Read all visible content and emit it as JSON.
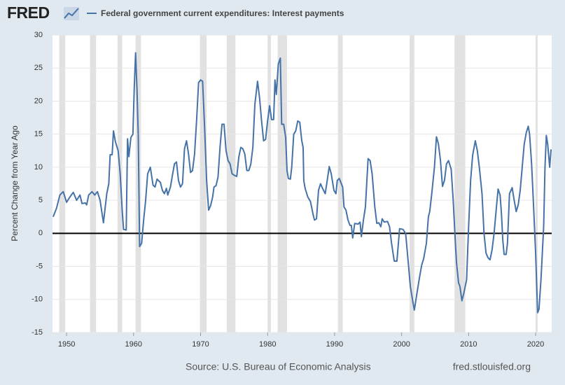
{
  "logo": "FRED",
  "source": "Source: U.S. Bureau of Economic Analysis",
  "site": "fred.stlouisfed.org",
  "chart_data": {
    "type": "line",
    "y_label": "Percent Change from Year Ago",
    "x": [
      1948.0,
      1948.5,
      1949.0,
      1949.5,
      1950.0,
      1950.5,
      1951.0,
      1951.5,
      1952.0,
      1952.3,
      1952.8,
      1953.0,
      1953.3,
      1953.8,
      1954.2,
      1954.6,
      1955.0,
      1955.5,
      1956.0,
      1956.3,
      1956.5,
      1956.8,
      1957.0,
      1957.3,
      1957.7,
      1958.0,
      1958.3,
      1958.5,
      1958.9,
      1959.1,
      1959.3,
      1959.6,
      1959.9,
      1960.1,
      1960.3,
      1960.5,
      1960.7,
      1960.9,
      1961.2,
      1961.5,
      1961.8,
      1962.1,
      1962.5,
      1962.9,
      1963.2,
      1963.5,
      1964.0,
      1964.3,
      1964.6,
      1964.9,
      1965.1,
      1965.5,
      1965.8,
      1966.1,
      1966.4,
      1966.7,
      1967.0,
      1967.3,
      1967.6,
      1967.9,
      1968.2,
      1968.5,
      1968.8,
      1969.1,
      1969.4,
      1969.7,
      1970.0,
      1970.3,
      1970.6,
      1970.9,
      1971.2,
      1971.5,
      1971.8,
      1972.0,
      1972.3,
      1972.6,
      1972.9,
      1973.2,
      1973.5,
      1973.8,
      1974.1,
      1974.4,
      1974.7,
      1975.0,
      1975.4,
      1975.7,
      1976.0,
      1976.3,
      1976.6,
      1976.9,
      1977.2,
      1977.5,
      1977.8,
      1978.1,
      1978.5,
      1978.8,
      1979.1,
      1979.4,
      1979.7,
      1980.0,
      1980.3,
      1980.6,
      1980.9,
      1981.1,
      1981.3,
      1981.6,
      1981.9,
      1982.1,
      1982.4,
      1982.7,
      1982.9,
      1983.1,
      1983.4,
      1983.6,
      1983.9,
      1984.2,
      1984.5,
      1984.8,
      1985.1,
      1985.3,
      1985.4,
      1985.6,
      1986.0,
      1986.4,
      1986.8,
      1987.0,
      1987.3,
      1987.6,
      1987.9,
      1988.2,
      1988.6,
      1988.9,
      1989.2,
      1989.5,
      1989.9,
      1990.2,
      1990.4,
      1990.7,
      1991.2,
      1991.4,
      1991.7,
      1992.0,
      1992.3,
      1992.5,
      1992.7,
      1993.0,
      1993.5,
      1993.8,
      1994.0,
      1994.3,
      1994.6,
      1995.0,
      1995.3,
      1995.6,
      1996.0,
      1996.3,
      1996.6,
      1996.9,
      1997.1,
      1997.4,
      1997.9,
      1998.2,
      1998.5,
      1998.9,
      1999.3,
      1999.7,
      2000.2,
      2000.6,
      2001.0,
      2001.3,
      2001.7,
      2001.9,
      2002.3,
      2002.7,
      2003.0,
      2003.3,
      2003.7,
      2004.0,
      2004.2,
      2004.5,
      2004.9,
      2005.2,
      2005.5,
      2005.8,
      2006.1,
      2006.4,
      2006.7,
      2007.0,
      2007.4,
      2007.7,
      2008.0,
      2008.2,
      2008.5,
      2008.7,
      2009.0,
      2009.3,
      2009.7,
      2010.0,
      2010.3,
      2010.6,
      2011.0,
      2011.3,
      2011.6,
      2012.0,
      2012.3,
      2012.6,
      2012.9,
      2013.2,
      2013.5,
      2013.8,
      2014.2,
      2014.4,
      2014.7,
      2014.9,
      2015.1,
      2015.3,
      2015.6,
      2015.8,
      2016.1,
      2016.5,
      2016.8,
      2017.1,
      2017.4,
      2017.7,
      2018.0,
      2018.3,
      2018.6,
      2018.9,
      2019.1,
      2019.4,
      2019.7,
      2020.0,
      2020.3,
      2020.5,
      2020.8,
      2021.2,
      2021.4,
      2021.6,
      2021.8,
      2022.1,
      2022.3
    ],
    "series": [
      {
        "name": "Federal government current expenditures: Interest payments",
        "color": "#4572a7",
        "values": [
          2.5,
          3.8,
          5.8,
          6.3,
          4.7,
          5.5,
          6.2,
          5.0,
          5.8,
          4.5,
          4.6,
          4.3,
          5.8,
          6.3,
          5.8,
          6.3,
          5.0,
          1.6,
          6.0,
          7.5,
          11.9,
          11.9,
          15.5,
          13.8,
          12.5,
          9.0,
          3.5,
          0.6,
          0.5,
          14.3,
          11.6,
          14.5,
          15.0,
          22.0,
          27.3,
          22.0,
          14.8,
          -2.0,
          -1.5,
          2.0,
          5.0,
          9.0,
          10.0,
          7.3,
          7.0,
          8.2,
          7.7,
          6.5,
          6.0,
          6.8,
          5.8,
          7.0,
          8.8,
          10.5,
          10.8,
          8.0,
          7.0,
          7.5,
          12.8,
          14.0,
          12.0,
          9.2,
          9.5,
          12.0,
          17.0,
          22.8,
          23.2,
          23.0,
          16.0,
          8.0,
          3.5,
          4.2,
          5.5,
          7.0,
          7.2,
          8.5,
          13.0,
          16.5,
          16.5,
          12.5,
          11.0,
          10.5,
          9.0,
          8.8,
          8.6,
          11.5,
          13.0,
          12.8,
          12.0,
          9.5,
          9.5,
          10.5,
          13.0,
          19.5,
          23.0,
          20.5,
          17.0,
          14.0,
          14.2,
          17.0,
          19.3,
          17.2,
          17.2,
          23.2,
          21.0,
          25.6,
          26.5,
          16.5,
          16.5,
          14.5,
          9.5,
          8.3,
          8.2,
          10.0,
          15.0,
          15.5,
          17.0,
          16.8,
          14.0,
          13.0,
          8.0,
          6.8,
          5.5,
          4.8,
          2.8,
          2.0,
          2.2,
          6.5,
          7.5,
          6.8,
          6.0,
          8.0,
          10.1,
          9.0,
          6.5,
          6.0,
          8.0,
          8.3,
          7.0,
          4.0,
          3.5,
          2.0,
          1.2,
          1.2,
          -0.7,
          1.5,
          1.4,
          1.7,
          -0.5,
          2.0,
          4.0,
          11.3,
          11.0,
          9.0,
          4.0,
          1.5,
          1.6,
          1.0,
          2.2,
          1.7,
          1.8,
          1.0,
          -1.5,
          -4.2,
          -4.2,
          0.7,
          0.6,
          0.0,
          -4.5,
          -8.0,
          -10.5,
          -11.6,
          -9.0,
          -6.5,
          -4.8,
          -3.8,
          -1.5,
          2.5,
          3.3,
          6.0,
          10.0,
          14.6,
          13.5,
          11.0,
          7.1,
          8.0,
          10.5,
          11.0,
          9.7,
          5.0,
          -1.0,
          -4.5,
          -7.5,
          -8.0,
          -10.2,
          -9.0,
          -7.0,
          1.0,
          8.0,
          11.8,
          14.0,
          12.5,
          10.0,
          6.0,
          0.0,
          -3.0,
          -3.7,
          -4.0,
          -2.5,
          0.0,
          4.5,
          6.7,
          5.8,
          3.0,
          -1.0,
          -3.2,
          -3.2,
          -1.5,
          6.0,
          6.9,
          5.0,
          3.3,
          4.3,
          6.5,
          10.0,
          13.5,
          15.2,
          16.2,
          15.0,
          10.5,
          4.0,
          -3.0,
          -12.0,
          -11.5,
          -7.0,
          1.0,
          10.0,
          14.8,
          13.5,
          10.0,
          12.7
        ]
      }
    ],
    "recessions": [
      [
        1948.9,
        1949.8
      ],
      [
        1953.5,
        1954.4
      ],
      [
        1957.6,
        1958.3
      ],
      [
        1960.3,
        1961.1
      ],
      [
        1969.9,
        1970.9
      ],
      [
        1973.9,
        1975.2
      ],
      [
        1980.0,
        1980.5
      ],
      [
        1981.5,
        1982.9
      ],
      [
        1990.5,
        1991.2
      ],
      [
        2001.2,
        2001.9
      ],
      [
        2007.9,
        2009.5
      ],
      [
        2020.0,
        2020.3
      ]
    ],
    "recession_color": "#e1e1e1",
    "xlim": [
      1947.9,
      2022.4
    ],
    "xticks": [
      1950,
      1960,
      1970,
      1980,
      1990,
      2000,
      2010,
      2020
    ],
    "ylim": [
      -15,
      30
    ],
    "yticks": [
      -15,
      -10,
      -5,
      0,
      5,
      10,
      15,
      20,
      25,
      30
    ],
    "grid": true
  }
}
